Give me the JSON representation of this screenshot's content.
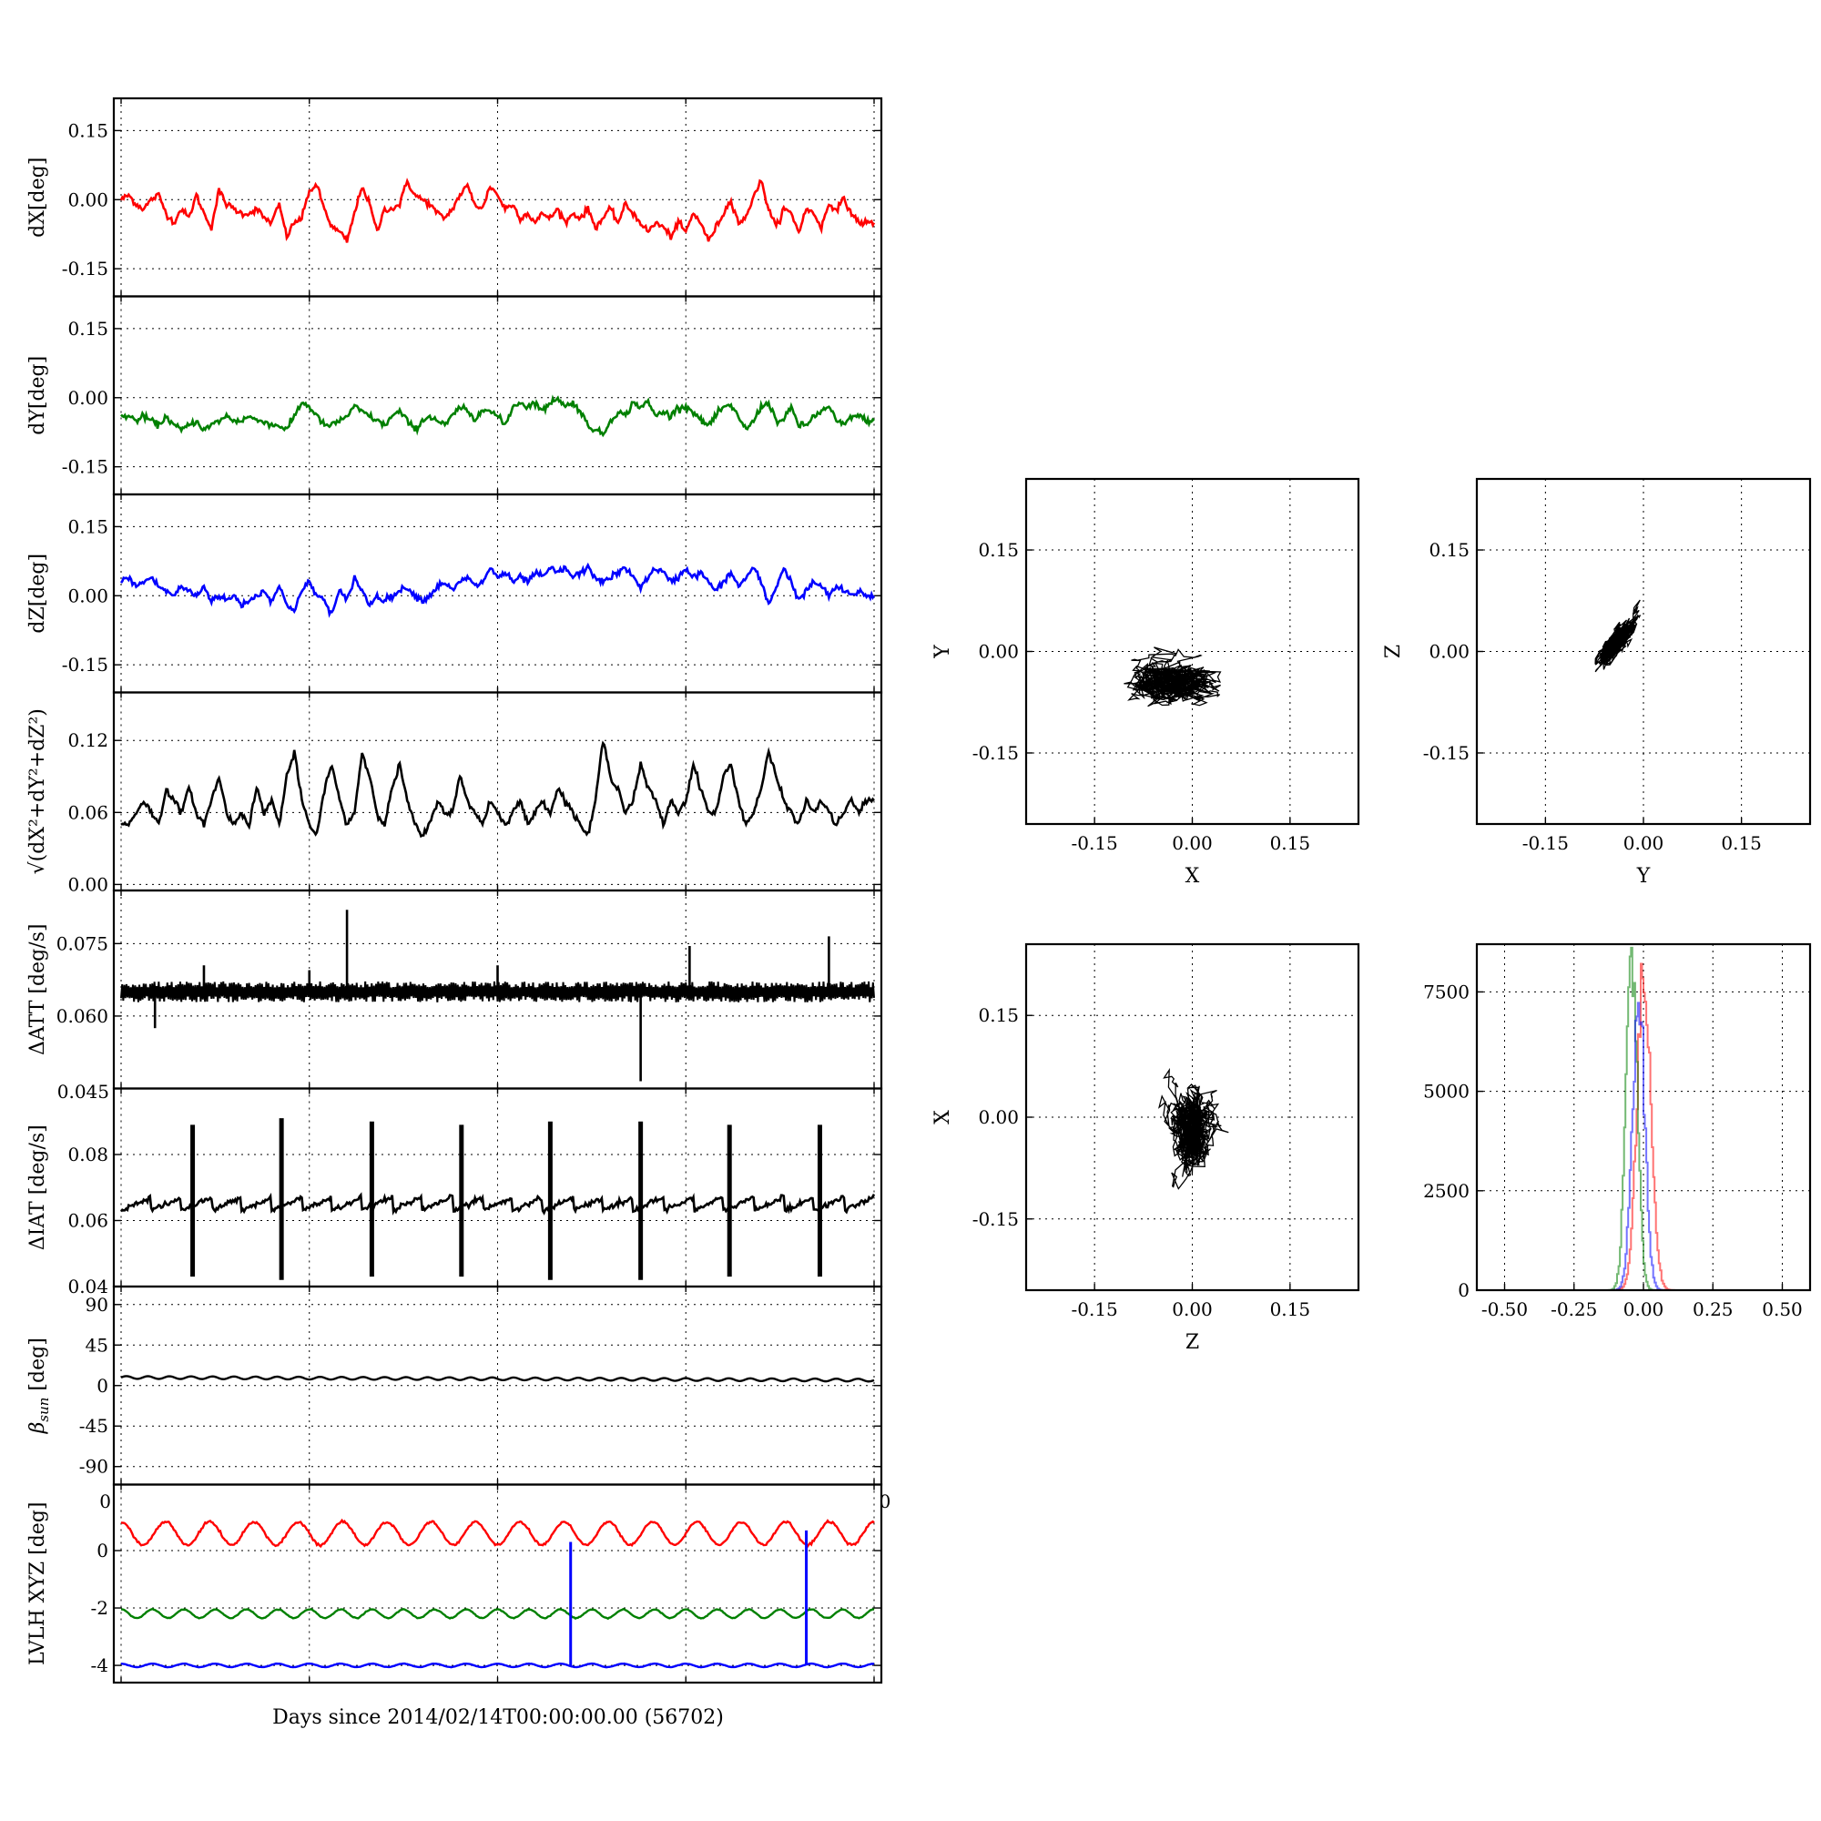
{
  "figure": {
    "xlabel": "Days since 2014/02/14T00:00:00.00 (56702)",
    "stray_labels": {
      "panel5_bottom": "0.045",
      "panel7_left": "0",
      "panel7_right": "0"
    }
  },
  "chart_data": [
    {
      "id": "dX",
      "type": "line",
      "ylabel": "dX[deg]",
      "color": "#ff0000",
      "ylim": [
        -0.21,
        0.22
      ],
      "yticks": [
        {
          "v": 0.15,
          "label": "0.15"
        },
        {
          "v": 0.0,
          "label": "0.00"
        },
        {
          "v": -0.15,
          "label": "-0.15"
        }
      ],
      "values": [
        0.0,
        0.01,
        -0.01,
        -0.02,
        0.0,
        0.01,
        -0.03,
        -0.05,
        -0.02,
        -0.04,
        0.01,
        -0.03,
        -0.06,
        0.02,
        -0.01,
        -0.02,
        -0.03,
        -0.03,
        -0.02,
        -0.04,
        -0.05,
        -0.01,
        -0.08,
        -0.05,
        -0.04,
        0.02,
        0.03,
        -0.02,
        -0.06,
        -0.07,
        -0.09,
        -0.03,
        0.03,
        -0.01,
        -0.07,
        -0.02,
        -0.02,
        -0.01,
        0.04,
        0.01,
        0.0,
        -0.01,
        -0.03,
        -0.04,
        -0.02,
        0.01,
        0.03,
        -0.01,
        -0.02,
        0.03,
        0.01,
        -0.02,
        -0.01,
        -0.04,
        -0.03,
        -0.05,
        -0.03,
        -0.04,
        -0.02,
        -0.05,
        -0.03,
        -0.04,
        -0.02,
        -0.06,
        -0.04,
        -0.02,
        -0.05,
        -0.01,
        -0.03,
        -0.05,
        -0.07,
        -0.05,
        -0.06,
        -0.08,
        -0.05,
        -0.07,
        -0.03,
        -0.05,
        -0.09,
        -0.06,
        -0.03,
        0.0,
        -0.05,
        -0.04,
        0.01,
        0.04,
        -0.02,
        -0.06,
        -0.02,
        -0.03,
        -0.07,
        -0.02,
        -0.03,
        -0.06,
        -0.01,
        -0.02,
        0.0,
        -0.03,
        -0.05,
        -0.05,
        -0.05
      ]
    },
    {
      "id": "dY",
      "type": "line",
      "ylabel": "dY[deg]",
      "color": "#008000",
      "ylim": [
        -0.21,
        0.22
      ],
      "yticks": [
        {
          "v": 0.15,
          "label": "0.15"
        },
        {
          "v": 0.0,
          "label": "0.00"
        },
        {
          "v": -0.15,
          "label": "-0.15"
        }
      ],
      "values": [
        -0.04,
        -0.04,
        -0.05,
        -0.04,
        -0.05,
        -0.06,
        -0.04,
        -0.06,
        -0.07,
        -0.06,
        -0.05,
        -0.07,
        -0.06,
        -0.05,
        -0.04,
        -0.05,
        -0.05,
        -0.04,
        -0.05,
        -0.05,
        -0.06,
        -0.06,
        -0.07,
        -0.04,
        -0.01,
        -0.02,
        -0.04,
        -0.06,
        -0.06,
        -0.05,
        -0.04,
        -0.02,
        -0.03,
        -0.04,
        -0.05,
        -0.06,
        -0.04,
        -0.03,
        -0.05,
        -0.07,
        -0.05,
        -0.04,
        -0.05,
        -0.06,
        -0.04,
        -0.02,
        -0.03,
        -0.05,
        -0.02,
        -0.03,
        -0.04,
        -0.06,
        -0.02,
        -0.01,
        -0.02,
        -0.01,
        -0.03,
        -0.01,
        0.0,
        -0.02,
        -0.01,
        -0.03,
        -0.06,
        -0.07,
        -0.08,
        -0.05,
        -0.03,
        -0.04,
        -0.01,
        -0.02,
        -0.01,
        -0.04,
        -0.03,
        -0.04,
        -0.02,
        -0.02,
        -0.03,
        -0.05,
        -0.06,
        -0.04,
        -0.02,
        -0.02,
        -0.04,
        -0.07,
        -0.05,
        -0.02,
        -0.01,
        -0.05,
        -0.05,
        -0.02,
        -0.06,
        -0.06,
        -0.04,
        -0.03,
        -0.02,
        -0.05,
        -0.06,
        -0.04,
        -0.04,
        -0.05,
        -0.05
      ]
    },
    {
      "id": "dZ",
      "type": "line",
      "ylabel": "dZ[deg]",
      "color": "#0000ff",
      "ylim": [
        -0.21,
        0.22
      ],
      "yticks": [
        {
          "v": 0.15,
          "label": "0.15"
        },
        {
          "v": 0.0,
          "label": "0.00"
        },
        {
          "v": -0.15,
          "label": "-0.15"
        }
      ],
      "values": [
        0.03,
        0.04,
        0.02,
        0.03,
        0.04,
        0.02,
        0.01,
        0.0,
        0.02,
        0.01,
        0.0,
        0.02,
        -0.01,
        0.0,
        -0.01,
        0.0,
        -0.02,
        -0.01,
        0.0,
        0.01,
        -0.01,
        0.02,
        -0.02,
        -0.03,
        0.01,
        0.03,
        0.0,
        -0.01,
        -0.04,
        0.01,
        -0.01,
        0.04,
        0.01,
        -0.02,
        0.0,
        -0.01,
        0.0,
        0.01,
        0.02,
        0.0,
        -0.01,
        0.0,
        0.02,
        0.03,
        0.01,
        0.03,
        0.04,
        0.02,
        0.03,
        0.06,
        0.04,
        0.05,
        0.03,
        0.04,
        0.03,
        0.05,
        0.04,
        0.06,
        0.05,
        0.06,
        0.04,
        0.05,
        0.06,
        0.04,
        0.03,
        0.04,
        0.05,
        0.06,
        0.04,
        0.02,
        0.04,
        0.06,
        0.05,
        0.03,
        0.04,
        0.06,
        0.04,
        0.05,
        0.03,
        0.01,
        0.03,
        0.05,
        0.02,
        0.04,
        0.06,
        0.03,
        -0.02,
        0.02,
        0.06,
        0.03,
        -0.01,
        0.01,
        0.03,
        0.02,
        0.0,
        0.02,
        0.01,
        0.0,
        0.01,
        0.0,
        0.0
      ]
    },
    {
      "id": "dR",
      "type": "line",
      "ylabel": "√(dX²+dY²+dZ²)",
      "color": "#000000",
      "ylim": [
        -0.005,
        0.16
      ],
      "yticks": [
        {
          "v": 0.12,
          "label": "0.12"
        },
        {
          "v": 0.06,
          "label": "0.06"
        },
        {
          "v": 0.0,
          "label": "0.00"
        }
      ],
      "values": [
        0.05,
        0.05,
        0.06,
        0.07,
        0.06,
        0.05,
        0.08,
        0.07,
        0.06,
        0.08,
        0.06,
        0.05,
        0.07,
        0.09,
        0.06,
        0.05,
        0.06,
        0.05,
        0.08,
        0.06,
        0.07,
        0.05,
        0.09,
        0.11,
        0.07,
        0.05,
        0.04,
        0.08,
        0.1,
        0.07,
        0.05,
        0.06,
        0.11,
        0.09,
        0.06,
        0.05,
        0.08,
        0.1,
        0.07,
        0.05,
        0.04,
        0.05,
        0.07,
        0.06,
        0.06,
        0.09,
        0.07,
        0.06,
        0.05,
        0.07,
        0.06,
        0.05,
        0.06,
        0.07,
        0.05,
        0.06,
        0.07,
        0.06,
        0.08,
        0.07,
        0.06,
        0.05,
        0.04,
        0.07,
        0.12,
        0.09,
        0.08,
        0.06,
        0.07,
        0.1,
        0.08,
        0.07,
        0.05,
        0.07,
        0.06,
        0.07,
        0.1,
        0.08,
        0.06,
        0.06,
        0.09,
        0.1,
        0.07,
        0.05,
        0.06,
        0.08,
        0.11,
        0.09,
        0.07,
        0.06,
        0.05,
        0.07,
        0.06,
        0.07,
        0.06,
        0.05,
        0.06,
        0.07,
        0.06,
        0.07,
        0.07
      ]
    },
    {
      "id": "dATT",
      "type": "line",
      "ylabel": "ΔATT [deg/s]",
      "color": "#000000",
      "ylim": [
        0.045,
        0.086
      ],
      "yticks": [
        {
          "v": 0.075,
          "label": "0.075"
        },
        {
          "v": 0.06,
          "label": "0.060"
        }
      ],
      "base": 0.065,
      "noise": 0.0018,
      "spikes": [
        {
          "x": 0.045,
          "v": 0.0575
        },
        {
          "x": 0.11,
          "v": 0.0705
        },
        {
          "x": 0.25,
          "v": 0.0695
        },
        {
          "x": 0.3,
          "v": 0.082
        },
        {
          "x": 0.5,
          "v": 0.0705
        },
        {
          "x": 0.69,
          "v": 0.0465
        },
        {
          "x": 0.755,
          "v": 0.0745
        },
        {
          "x": 0.94,
          "v": 0.0765
        }
      ]
    },
    {
      "id": "dIAT",
      "type": "line",
      "ylabel": "ΔIAT [deg/s]",
      "color": "#000000",
      "ylim": [
        0.04,
        0.1
      ],
      "yticks": [
        {
          "v": 0.08,
          "label": "0.08"
        },
        {
          "v": 0.06,
          "label": "0.06"
        },
        {
          "v": 0.04,
          "label": "0.04"
        }
      ],
      "sawtooth": {
        "low": 0.063,
        "high": 0.067,
        "period": 0.04
      },
      "spikes": [
        {
          "x": 0.095,
          "hi": 0.089,
          "lo": 0.043
        },
        {
          "x": 0.213,
          "hi": 0.091,
          "lo": 0.042
        },
        {
          "x": 0.333,
          "hi": 0.09,
          "lo": 0.043
        },
        {
          "x": 0.452,
          "hi": 0.089,
          "lo": 0.043
        },
        {
          "x": 0.57,
          "hi": 0.09,
          "lo": 0.042
        },
        {
          "x": 0.69,
          "hi": 0.09,
          "lo": 0.042
        },
        {
          "x": 0.808,
          "hi": 0.089,
          "lo": 0.043
        },
        {
          "x": 0.928,
          "hi": 0.089,
          "lo": 0.043
        }
      ]
    },
    {
      "id": "beta",
      "type": "line",
      "ylabel": "β_sun [deg]",
      "ylabel_main": "β",
      "ylabel_sub": "sun",
      "ylabel_unit": " [deg]",
      "color": "#000000",
      "ylim": [
        -110,
        110
      ],
      "yticks": [
        {
          "v": 90,
          "label": "90"
        },
        {
          "v": 45,
          "label": "45"
        },
        {
          "v": 0,
          "label": "0"
        },
        {
          "v": -45,
          "label": "-45"
        },
        {
          "v": -90,
          "label": "-90"
        }
      ],
      "start": 9,
      "end": 6,
      "amp": 1.5,
      "cycles": 35
    },
    {
      "id": "lvlh",
      "type": "line",
      "ylabel": "LVLH XYZ [deg]",
      "ylim": [
        -4.6,
        2.3
      ],
      "yticks": [
        {
          "v": 0,
          "label": "0"
        },
        {
          "v": -2,
          "label": "-2"
        },
        {
          "v": -4,
          "label": "-4"
        }
      ],
      "series": [
        {
          "color": "#ff0000",
          "mean": 0.6,
          "amp": 0.4,
          "cycles": 17
        },
        {
          "color": "#008000",
          "mean": -2.2,
          "amp": 0.15,
          "cycles": 24
        },
        {
          "color": "#0000ff",
          "mean": -4.0,
          "amp": 0.06,
          "cycles": 24
        }
      ],
      "spikes": [
        {
          "x": 0.597,
          "from": -4.0,
          "to": 0.3
        },
        {
          "x": 0.91,
          "from": -4.0,
          "to": 0.7
        }
      ]
    },
    {
      "id": "scatterXY",
      "type": "scatter",
      "xlabel": "X",
      "ylabel": "Y",
      "xlim": [
        -0.255,
        0.255
      ],
      "ylim": [
        -0.255,
        0.255
      ],
      "ticks": [
        {
          "v": -0.15,
          "label": "-0.15"
        },
        {
          "v": 0.0,
          "label": "0.00"
        },
        {
          "v": 0.15,
          "label": "0.15"
        }
      ],
      "center": [
        -0.03,
        -0.045
      ],
      "spread": [
        0.035,
        0.018
      ],
      "corr": 0.1
    },
    {
      "id": "scatterYZ",
      "type": "scatter",
      "xlabel": "Y",
      "ylabel": "Z",
      "xlim": [
        -0.255,
        0.255
      ],
      "ylim": [
        -0.255,
        0.255
      ],
      "ticks": [
        {
          "v": -0.15,
          "label": "-0.15"
        },
        {
          "v": 0.0,
          "label": "0.00"
        },
        {
          "v": 0.15,
          "label": "0.15"
        }
      ],
      "center": [
        -0.04,
        0.015
      ],
      "spread": [
        0.018,
        0.022
      ],
      "corr": 0.85
    },
    {
      "id": "scatterZX",
      "type": "scatter",
      "xlabel": "Z",
      "ylabel": "X",
      "xlim": [
        -0.255,
        0.255
      ],
      "ylim": [
        -0.255,
        0.255
      ],
      "ticks": [
        {
          "v": -0.15,
          "label": "-0.15"
        },
        {
          "v": 0.0,
          "label": "0.00"
        },
        {
          "v": 0.15,
          "label": "0.15"
        }
      ],
      "center": [
        0.0,
        -0.02
      ],
      "spread": [
        0.02,
        0.035
      ],
      "corr": 0.05
    },
    {
      "id": "hist",
      "type": "histogram",
      "xlim": [
        -0.6,
        0.6
      ],
      "ylim": [
        0,
        8700
      ],
      "xticks": [
        {
          "v": -0.5,
          "label": "-0.50"
        },
        {
          "v": -0.25,
          "label": "-0.25"
        },
        {
          "v": 0.0,
          "label": "0.00"
        },
        {
          "v": 0.25,
          "label": "0.25"
        },
        {
          "v": 0.5,
          "label": "0.50"
        }
      ],
      "yticks": [
        {
          "v": 0,
          "label": "0"
        },
        {
          "v": 2500,
          "label": "2500"
        },
        {
          "v": 5000,
          "label": "5000"
        },
        {
          "v": 7500,
          "label": "7500"
        }
      ],
      "series": [
        {
          "color": "#ff0000",
          "peak_x": 0.0,
          "peak": 8000,
          "sigma": 0.025
        },
        {
          "color": "#008000",
          "peak_x": -0.045,
          "peak": 8600,
          "sigma": 0.02
        },
        {
          "color": "#0000ff",
          "peak_x": -0.02,
          "peak": 7500,
          "sigma": 0.022
        }
      ]
    }
  ]
}
